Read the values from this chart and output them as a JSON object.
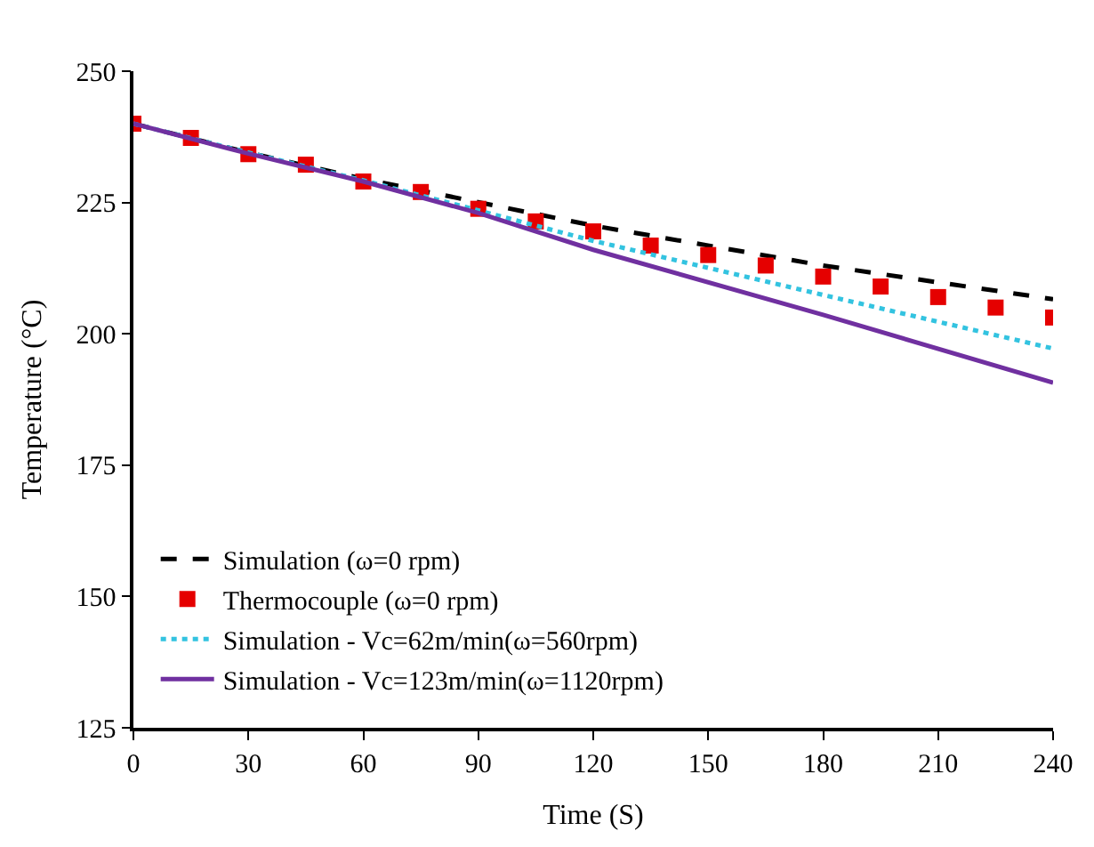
{
  "chart_data": {
    "type": "line",
    "xlabel": "Time (S)",
    "ylabel": "Temperature (°C)",
    "xlim": [
      0,
      240
    ],
    "xticks": [
      0,
      30,
      60,
      90,
      120,
      150,
      180,
      210,
      240
    ],
    "ylim": [
      125,
      250
    ],
    "yticks": [
      125,
      150,
      175,
      200,
      225,
      250
    ],
    "grid": false,
    "legend": "bottom left",
    "series": [
      {
        "name": "Simulation (ω=0 rpm)",
        "color": "#000000",
        "line_style": "dashed",
        "x": [
          0,
          30,
          60,
          120,
          180,
          240
        ],
        "values": [
          240,
          234.5,
          229.5,
          220.6,
          213,
          206.6
        ]
      },
      {
        "name": "Thermocouple (ω=0 rpm)",
        "color": "#e50000",
        "type": "scatter",
        "marker": "square",
        "x": [
          0,
          15,
          30,
          45,
          60,
          75,
          90,
          105,
          120,
          135,
          150,
          165,
          180,
          195,
          210,
          225,
          240
        ],
        "values": [
          240,
          237.3,
          234.2,
          232.2,
          229,
          227,
          223.8,
          221.4,
          219.5,
          216.8,
          215,
          213,
          210.9,
          209,
          207,
          205,
          203.1
        ]
      },
      {
        "name": "Simulation - Vc=62m/min(ω=560rpm)",
        "color": "#33c3e0",
        "line_style": "dotted",
        "x": [
          0,
          30,
          60,
          90,
          120,
          180,
          240
        ],
        "values": [
          240,
          234.5,
          229.2,
          223.5,
          217.7,
          207.4,
          197.2
        ]
      },
      {
        "name": "Simulation - Vc=123m/min(ω=1120rpm)",
        "color": "#7030a0",
        "line_style": "solid",
        "x": [
          0,
          30,
          60,
          90,
          120,
          180,
          240
        ],
        "values": [
          240,
          234.3,
          229,
          223,
          216,
          203.6,
          190.7
        ]
      }
    ]
  }
}
